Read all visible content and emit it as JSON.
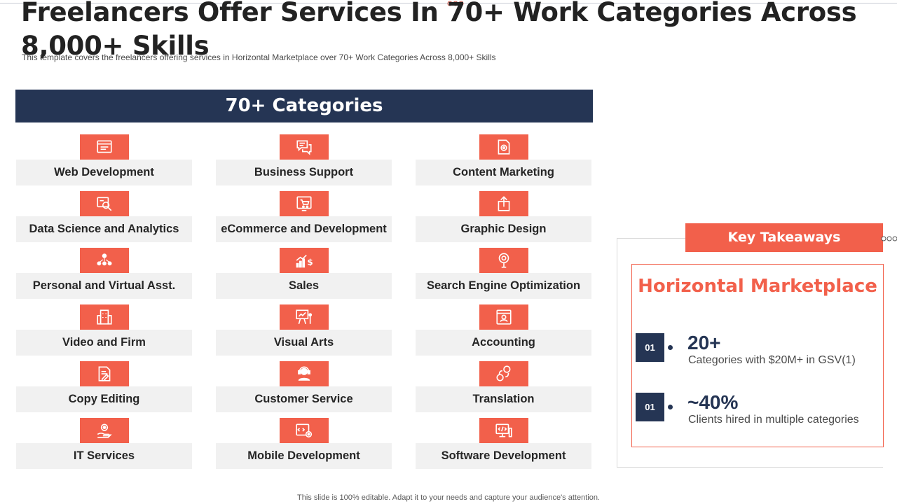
{
  "title": "Freelancers Offer Services In 70+ Work Categories Across 8,000+ Skills",
  "subtitle": "This template covers the freelancers offering services in Horizontal Marketplace over 70+ Work Categories Across 8,000+ Skills",
  "categories_header": "70+ Categories",
  "categories": [
    {
      "label": "Web Development",
      "icon": "browser-code-icon"
    },
    {
      "label": "Business Support",
      "icon": "chat-bubbles-icon"
    },
    {
      "label": "Content Marketing",
      "icon": "document-gear-icon"
    },
    {
      "label": "Data Science and Analytics",
      "icon": "data-magnifier-icon"
    },
    {
      "label": "eCommerce and Development",
      "icon": "shopping-cart-icon"
    },
    {
      "label": "Graphic Design",
      "icon": "upload-box-icon"
    },
    {
      "label": "Personal and Virtual Asst.",
      "icon": "people-network-icon"
    },
    {
      "label": "Sales",
      "icon": "growth-chart-dollar-icon"
    },
    {
      "label": "Search Engine Optimization",
      "icon": "seo-gear-icon"
    },
    {
      "label": "Video and Firm",
      "icon": "building-icon"
    },
    {
      "label": "Visual Arts",
      "icon": "presentation-board-icon"
    },
    {
      "label": "Accounting",
      "icon": "profile-window-icon"
    },
    {
      "label": "Copy Editing",
      "icon": "document-pen-icon"
    },
    {
      "label": "Customer Service",
      "icon": "headset-agent-icon"
    },
    {
      "label": "Translation",
      "icon": "translate-bubbles-icon"
    },
    {
      "label": "IT Services",
      "icon": "hand-gear-icon"
    },
    {
      "label": "Mobile Development",
      "icon": "tablet-gear-icon"
    },
    {
      "label": "Software Development",
      "icon": "monitor-code-icon"
    }
  ],
  "key_takeaways": {
    "header": "Key Takeaways",
    "heading": "Horizontal Marketplace",
    "stats": [
      {
        "number": "01",
        "value": "20+",
        "description": "Categories with $20M+ in GSV(1)"
      },
      {
        "number": "01",
        "value": "~40%",
        "description": "Clients hired in multiple categories"
      }
    ]
  },
  "footer": "This slide is 100% editable. Adapt it to your needs and capture your audience's attention.",
  "colors": {
    "navy": "#253554",
    "accent": "#f2604b",
    "tile_bg": "#f1f1f1"
  }
}
